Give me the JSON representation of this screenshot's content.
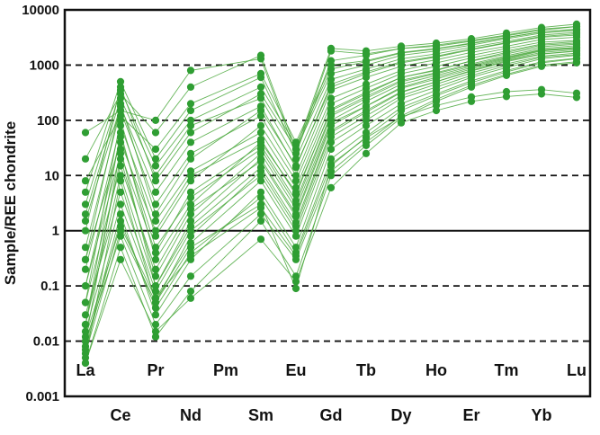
{
  "chart_data": {
    "type": "line",
    "title": "",
    "ylabel": "Sample/REE chondrite",
    "xlabel": "",
    "y_scale": "log",
    "ylim": [
      0.001,
      10000
    ],
    "y_tick_labels": [
      "10000",
      "1000",
      "100",
      "10",
      "1",
      "0.1",
      "0.01",
      "0.001"
    ],
    "y_tick_values": [
      10000,
      1000,
      100,
      10,
      1,
      0.1,
      0.01,
      0.001
    ],
    "x_categories": [
      "La",
      "Ce",
      "Pr",
      "Nd",
      "Pm",
      "Sm",
      "Eu",
      "Gd",
      "Tb",
      "Dy",
      "Ho",
      "Er",
      "Tm",
      "Yb",
      "Lu"
    ],
    "grid": {
      "dashed_at": [
        1000,
        100,
        10,
        0.1,
        0.01
      ],
      "solid_at": [
        1
      ]
    },
    "legend": "none",
    "colors": {
      "line": "#4aa83c",
      "marker": "#2f9e33",
      "axis": "#111111",
      "background": "#ffffff"
    },
    "series": [
      [
        0.01,
        30,
        0.1,
        1.5,
        null,
        20,
        2.0,
        90,
        180,
        400,
        600,
        900,
        1300,
        1800,
        2000
      ],
      [
        0.02,
        60,
        0.3,
        3.0,
        null,
        40,
        5.0,
        150,
        300,
        600,
        800,
        1200,
        1700,
        2300,
        2500
      ],
      [
        0.005,
        8,
        0.05,
        0.8,
        null,
        12,
        1.2,
        60,
        140,
        320,
        500,
        800,
        1200,
        1600,
        1800
      ],
      [
        0.05,
        100,
        0.8,
        8.0,
        null,
        80,
        8.0,
        250,
        450,
        800,
        1100,
        1500,
        2000,
        2600,
        2800
      ],
      [
        0.3,
        200,
        2.0,
        20,
        null,
        150,
        15,
        400,
        700,
        1100,
        1400,
        1900,
        2500,
        3200,
        3500
      ],
      [
        1.0,
        400,
        8.0,
        60,
        null,
        300,
        30,
        700,
        1000,
        1500,
        1800,
        2300,
        3000,
        3800,
        4200
      ],
      [
        5.0,
        500,
        20,
        150,
        null,
        600,
        25,
        1200,
        1500,
        2000,
        2300,
        2800,
        3500,
        4500,
        5000
      ],
      [
        20,
        300,
        60,
        400,
        null,
        1500,
        30,
        2000,
        1800,
        2200,
        2500,
        3000,
        3800,
        4800,
        5500
      ],
      [
        60,
        150,
        100,
        800,
        null,
        1300,
        25,
        1800,
        1600,
        2000,
        2200,
        2700,
        3400,
        4300,
        5000
      ],
      [
        0.008,
        2.0,
        0.03,
        0.3,
        null,
        5.0,
        0.5,
        30,
        80,
        200,
        350,
        600,
        900,
        1300,
        1500
      ],
      [
        0.004,
        0.5,
        0.012,
        0.08,
        null,
        1.5,
        0.15,
        10,
        35,
        110,
        220,
        400,
        650,
        950,
        1100
      ],
      [
        0.006,
        1.0,
        0.05,
        0.5,
        null,
        3.0,
        0.09,
        15,
        50,
        150,
        280,
        480,
        750,
        1100,
        1300
      ],
      [
        0.1,
        50,
        0.5,
        4.0,
        null,
        30,
        3.0,
        120,
        250,
        500,
        700,
        1000,
        1400,
        1900,
        2100
      ],
      [
        0.5,
        150,
        3.0,
        25,
        null,
        120,
        10,
        350,
        600,
        950,
        1250,
        1700,
        2200,
        2900,
        3200
      ],
      [
        2.0,
        250,
        10,
        80,
        null,
        250,
        20,
        550,
        850,
        1300,
        1600,
        2100,
        2700,
        3500,
        3900
      ],
      [
        0.02,
        20,
        0.15,
        2.0,
        null,
        25,
        2.5,
        100,
        220,
        450,
        650,
        950,
        1350,
        1850,
        2050
      ],
      [
        0.03,
        5.0,
        0.08,
        1.0,
        null,
        10,
        1.0,
        50,
        120,
        280,
        450,
        720,
        1050,
        1450,
        1650
      ],
      [
        0.015,
        3.0,
        0.06,
        0.6,
        null,
        8.0,
        0.8,
        40,
        100,
        250,
        400,
        650,
        980,
        1380,
        1550
      ],
      [
        0.2,
        80,
        1.5,
        12,
        null,
        60,
        6.0,
        200,
        380,
        700,
        950,
        1350,
        1800,
        2400,
        2650
      ],
      [
        8.0,
        120,
        30,
        200,
        null,
        700,
        40,
        1000,
        1200,
        1700,
        2000,
        2500,
        3200,
        4000,
        4500
      ],
      [
        0.05,
        15,
        0.2,
        2.5,
        null,
        18,
        1.8,
        80,
        180,
        380,
        560,
        850,
        1250,
        1700,
        1900
      ],
      [
        0.01,
        0.8,
        0.02,
        0.15,
        null,
        2.0,
        0.3,
        12,
        40,
        120,
        240,
        430,
        680,
        1000,
        1150
      ],
      [
        0.3,
        40,
        1.0,
        10,
        null,
        45,
        4.5,
        160,
        320,
        600,
        820,
        1180,
        1600,
        2150,
        2400
      ],
      [
        1.5,
        180,
        5.0,
        40,
        null,
        180,
        14,
        450,
        750,
        1150,
        1450,
        1950,
        2550,
        3300,
        3700
      ],
      [
        0.02,
        10,
        0.1,
        1.2,
        null,
        14,
        1.4,
        65,
        150,
        330,
        500,
        780,
        1150,
        1580,
        1780
      ],
      [
        0.1,
        25,
        0.4,
        5.0,
        null,
        35,
        3.5,
        130,
        270,
        530,
        730,
        1050,
        1480,
        2000,
        2250
      ],
      [
        3.0,
        350,
        15,
        100,
        null,
        400,
        35,
        850,
        1150,
        1650,
        1950,
        2450,
        3150,
        4000,
        4400
      ],
      [
        0.007,
        1.5,
        0.04,
        0.4,
        null,
        4.0,
        0.4,
        20,
        60,
        170,
        300,
        520,
        800,
        1150,
        1330
      ],
      [
        0.004,
        0.3,
        0.015,
        0.06,
        null,
        0.7,
        0.12,
        6.0,
        25,
        90,
        150,
        220,
        270,
        300,
        260
      ],
      [
        0.012,
        1.2,
        0.06,
        0.35,
        null,
        2.6,
        0.35,
        16,
        48,
        115,
        185,
        265,
        330,
        360,
        310
      ]
    ]
  }
}
